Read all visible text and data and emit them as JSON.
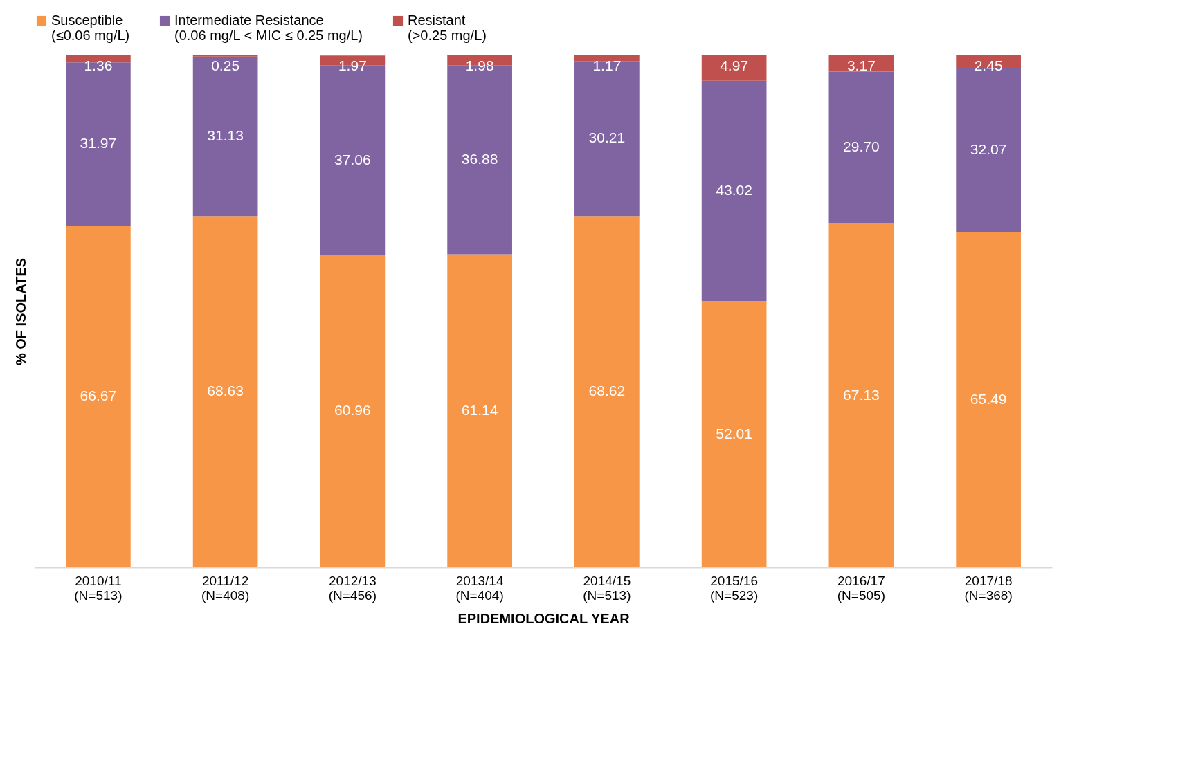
{
  "chart_data": {
    "type": "bar",
    "stacked": true,
    "legend": "top",
    "grid": false,
    "tick_labels": "x",
    "xlabel": "EPIDEMIOLOGICAL YEAR",
    "ylabel": "% OF ISOLATES",
    "categories": [
      "2010/11\n(N=513)",
      "2011/12\n(N=408)",
      "2012/13\n(N=456)",
      "2013/14\n(N=404)",
      "2014/15\n(N=513)",
      "2015/16\n(N=523)",
      "2016/17\n(N=505)",
      "2017/18\n(N=368)"
    ],
    "series": [
      {
        "name": "Susceptible\n(≤0.06 mg/L)",
        "color": "#f79646",
        "values": [
          66.67,
          68.63,
          60.96,
          61.14,
          68.62,
          52.01,
          67.13,
          65.49
        ],
        "value_labels": [
          "66.67",
          "68.63",
          "60.96",
          "61.14",
          "68.62",
          "52.01",
          "67.13",
          "65.49"
        ]
      },
      {
        "name": "Intermediate Resistance\n(0.06 mg/L < MIC ≤ 0.25 mg/L)",
        "color": "#8064a2",
        "values": [
          31.97,
          31.13,
          37.06,
          36.88,
          30.21,
          43.02,
          29.7,
          32.07
        ],
        "value_labels": [
          "31.97",
          "31.13",
          "37.06",
          "36.88",
          "30.21",
          "43.02",
          "29.70",
          "32.07"
        ]
      },
      {
        "name": "Resistant\n(>0.25 mg/L)",
        "color": "#c0504d",
        "values": [
          1.36,
          0.25,
          1.97,
          1.98,
          1.17,
          4.97,
          3.17,
          2.45
        ],
        "value_labels": [
          "1.36",
          "0.25",
          "1.97",
          "1.98",
          "1.17",
          "4.97",
          "3.17",
          "2.45"
        ]
      }
    ]
  }
}
